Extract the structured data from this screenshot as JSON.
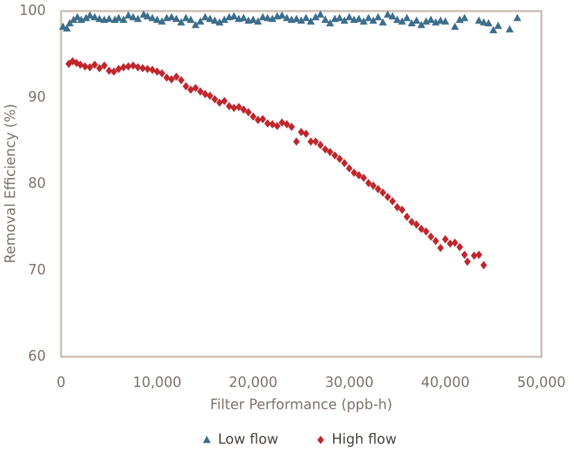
{
  "chart_data": {
    "type": "scatter",
    "xlabel": "Filter Performance (ppb-h)",
    "ylabel": "Removal Efficiency (%)",
    "xlim": [
      0,
      50000
    ],
    "ylim": [
      60,
      100
    ],
    "xticks": [
      0,
      {
        "value": 10000,
        "label": "10,000"
      },
      {
        "value": 20000,
        "label": "20,000"
      },
      {
        "value": 30000,
        "label": "30,000"
      },
      {
        "value": 40000,
        "label": "40,000"
      },
      {
        "value": 50000,
        "label": "50,000"
      }
    ],
    "yticks": [
      60,
      70,
      80,
      90,
      100
    ],
    "grid": false,
    "legend": "bottom",
    "series": [
      {
        "name": "Low flow",
        "color": "#3d6e8c",
        "marker": "triangle",
        "x": [
          200,
          600,
          900,
          1300,
          1700,
          2100,
          2600,
          3000,
          3500,
          4000,
          4500,
          5000,
          5600,
          6000,
          6500,
          7000,
          7500,
          8000,
          8600,
          9000,
          9500,
          10000,
          10500,
          11000,
          11500,
          12000,
          12500,
          13000,
          13500,
          14000,
          14500,
          15000,
          15500,
          16000,
          16500,
          17000,
          17500,
          18000,
          18500,
          19000,
          19500,
          20000,
          20500,
          21000,
          21500,
          22000,
          22500,
          23000,
          23500,
          24000,
          24500,
          25000,
          25500,
          26000,
          26500,
          27000,
          27500,
          28000,
          28500,
          29000,
          29500,
          30000,
          30500,
          31000,
          31500,
          32000,
          32500,
          33000,
          33500,
          34000,
          34500,
          35000,
          35500,
          36000,
          36500,
          37000,
          37500,
          38000,
          38500,
          39000,
          39500,
          40000,
          41000,
          41500,
          42000,
          43500,
          44000,
          44500,
          45000,
          45500,
          46700,
          47500
        ],
        "values": [
          98.2,
          98.0,
          98.6,
          99.0,
          99.3,
          99.0,
          99.2,
          99.5,
          99.3,
          99.1,
          99.0,
          99.1,
          99.0,
          99.2,
          99.0,
          99.5,
          99.3,
          99.1,
          99.6,
          99.4,
          99.2,
          99.0,
          98.8,
          99.2,
          99.3,
          99.1,
          98.7,
          99.2,
          99.0,
          98.4,
          98.8,
          99.3,
          99.1,
          98.9,
          98.7,
          99.0,
          99.3,
          99.4,
          99.1,
          99.2,
          98.9,
          99.0,
          98.8,
          99.3,
          99.2,
          99.1,
          99.4,
          99.5,
          99.2,
          99.0,
          99.1,
          98.9,
          99.2,
          98.8,
          99.3,
          99.6,
          99.0,
          98.6,
          99.1,
          99.2,
          98.9,
          99.3,
          99.0,
          99.1,
          98.8,
          99.2,
          98.9,
          99.3,
          98.7,
          99.6,
          99.4,
          99.0,
          98.8,
          99.2,
          98.6,
          98.9,
          98.4,
          98.8,
          99.0,
          98.7,
          98.9,
          98.8,
          98.2,
          99.0,
          99.2,
          98.9,
          98.7,
          98.6,
          97.8,
          98.3,
          97.9,
          99.2
        ]
      },
      {
        "name": "High flow",
        "color": "#c0272d",
        "marker": "diamond",
        "x": [
          800,
          1200,
          1600,
          2000,
          2500,
          3000,
          3500,
          4000,
          4500,
          5000,
          5500,
          6000,
          6500,
          7000,
          7500,
          8000,
          8500,
          9000,
          9500,
          10000,
          10500,
          11000,
          11500,
          12000,
          12500,
          13000,
          13500,
          14000,
          14500,
          15000,
          15500,
          16000,
          16500,
          17000,
          17500,
          18000,
          18500,
          19000,
          19500,
          20000,
          20500,
          21000,
          21500,
          22000,
          22500,
          23000,
          23500,
          24000,
          24500,
          25000,
          25500,
          26000,
          26500,
          27000,
          27500,
          28000,
          28500,
          29000,
          29500,
          30000,
          30500,
          31000,
          31500,
          32000,
          32500,
          33000,
          33500,
          34000,
          34500,
          35000,
          35500,
          36000,
          36500,
          37000,
          37500,
          38000,
          38500,
          39000,
          39500,
          40000,
          40500,
          41000,
          41500,
          42000,
          42300,
          43000,
          43500,
          44000
        ],
        "values": [
          93.9,
          94.2,
          94.0,
          93.8,
          93.6,
          93.5,
          93.8,
          93.4,
          93.7,
          93.1,
          93.0,
          93.3,
          93.5,
          93.6,
          93.7,
          93.5,
          93.4,
          93.3,
          93.2,
          93.0,
          92.8,
          92.3,
          92.1,
          92.4,
          92.0,
          91.3,
          90.9,
          91.1,
          90.7,
          90.4,
          90.2,
          89.8,
          89.4,
          89.6,
          89.0,
          88.8,
          88.9,
          88.6,
          88.3,
          87.8,
          87.4,
          87.5,
          87.0,
          86.9,
          86.7,
          87.1,
          86.9,
          86.6,
          84.9,
          86.0,
          85.8,
          84.9,
          84.9,
          84.5,
          84.0,
          83.7,
          83.3,
          82.9,
          82.4,
          81.8,
          81.3,
          81.0,
          80.7,
          80.1,
          79.8,
          79.4,
          79.0,
          78.5,
          78.0,
          77.3,
          77.0,
          76.2,
          75.6,
          75.3,
          74.8,
          74.5,
          73.9,
          73.4,
          72.6,
          73.6,
          73.1,
          73.2,
          72.7,
          71.8,
          71.0,
          71.7,
          71.8,
          70.6
        ]
      }
    ]
  }
}
